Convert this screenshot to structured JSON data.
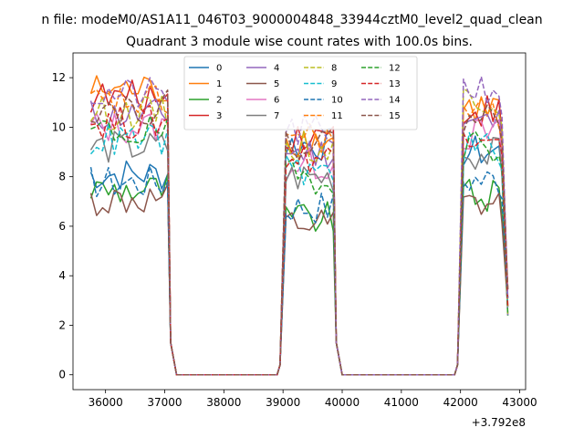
{
  "chart_data": {
    "type": "line",
    "suptitle": "n file: modeM0/AS1A11_046T03_9000004848_33944cztM0_level2_quad_clean",
    "title": "Quadrant 3 module wise count rates with 100.0s bins.",
    "xlabel": "",
    "ylabel": "",
    "x_offset_label": "+3.792e8",
    "xlim": [
      35450,
      43100
    ],
    "ylim": [
      -0.6,
      13.0
    ],
    "xticks": [
      36000,
      37000,
      38000,
      39000,
      40000,
      41000,
      42000,
      43000
    ],
    "xtick_labels": [
      "36000",
      "37000",
      "38000",
      "39000",
      "40000",
      "41000",
      "42000",
      "43000"
    ],
    "yticks": [
      0,
      2,
      4,
      6,
      8,
      10,
      12
    ],
    "ytick_labels": [
      "0",
      "2",
      "4",
      "6",
      "8",
      "10",
      "12"
    ],
    "grid": false,
    "legend_position": "top-center",
    "legend_columns": 4,
    "segments": [
      {
        "x_start": 35750,
        "x_end": 37050
      },
      {
        "x_start": 39050,
        "x_end": 39850
      },
      {
        "x_start": 42050,
        "x_end": 42650
      }
    ],
    "series": [
      {
        "name": "0",
        "color": "#1f77b4",
        "dash": "solid",
        "levels": [
          8.1,
          9.3,
          9.0
        ]
      },
      {
        "name": "1",
        "color": "#ff7f0e",
        "dash": "solid",
        "levels": [
          11.5,
          9.5,
          10.8
        ]
      },
      {
        "name": "2",
        "color": "#2ca02c",
        "dash": "solid",
        "levels": [
          7.5,
          6.3,
          7.2
        ]
      },
      {
        "name": "3",
        "color": "#d62728",
        "dash": "solid",
        "levels": [
          11.2,
          9.7,
          10.7
        ]
      },
      {
        "name": "4",
        "color": "#9467bd",
        "dash": "solid",
        "levels": [
          10.5,
          9.0,
          10.2
        ]
      },
      {
        "name": "5",
        "color": "#8c564b",
        "dash": "solid",
        "levels": [
          7.0,
          6.0,
          6.8
        ]
      },
      {
        "name": "6",
        "color": "#e377c2",
        "dash": "solid",
        "levels": [
          10.0,
          8.5,
          9.7
        ]
      },
      {
        "name": "7",
        "color": "#7f7f7f",
        "dash": "solid",
        "levels": [
          9.2,
          8.0,
          8.9
        ]
      },
      {
        "name": "8",
        "color": "#bcbd22",
        "dash": "dashed",
        "levels": [
          10.6,
          9.2,
          11.2
        ]
      },
      {
        "name": "9",
        "color": "#17becf",
        "dash": "dashed",
        "levels": [
          9.5,
          8.2,
          9.2
        ]
      },
      {
        "name": "10",
        "color": "#1f77b4",
        "dash": "dashed",
        "levels": [
          7.8,
          6.8,
          7.9
        ]
      },
      {
        "name": "11",
        "color": "#ff7f0e",
        "dash": "dashed",
        "levels": [
          11.0,
          9.6,
          10.5
        ]
      },
      {
        "name": "12",
        "color": "#2ca02c",
        "dash": "dashed",
        "levels": [
          9.8,
          8.0,
          9.3
        ]
      },
      {
        "name": "13",
        "color": "#d62728",
        "dash": "dashed",
        "levels": [
          10.2,
          8.8,
          9.9
        ]
      },
      {
        "name": "14",
        "color": "#9467bd",
        "dash": "dashed",
        "levels": [
          11.3,
          9.8,
          11.6
        ]
      },
      {
        "name": "15",
        "color": "#8c564b",
        "dash": "dashed",
        "levels": [
          10.8,
          9.4,
          10.4
        ]
      }
    ]
  }
}
